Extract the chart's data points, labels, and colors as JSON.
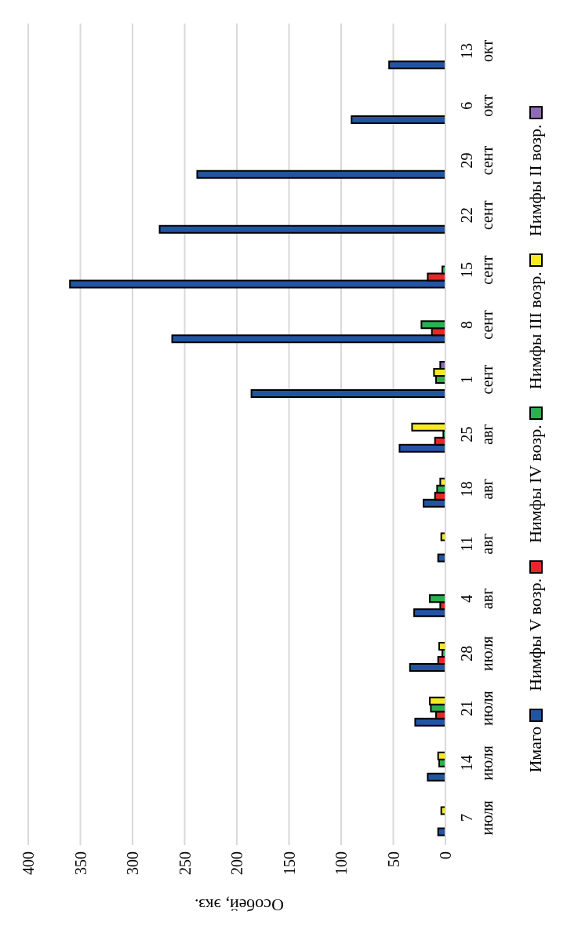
{
  "chart_data": {
    "type": "bar",
    "orientation": "horizontal",
    "xlabel": "Особей, экз.",
    "categories": [
      "13 окт",
      "6 окт",
      "29 сент",
      "22 сент",
      "15 сент",
      "8 сент",
      "1 сент",
      "25 авг",
      "18 авг",
      "11 авг",
      "4 авг",
      "28 июля",
      "21 июля",
      "14 июля",
      "7 июля"
    ],
    "series": [
      {
        "name": "Имаго",
        "color": "#2155a3",
        "values": [
          54,
          90,
          238,
          274,
          360,
          262,
          186,
          44,
          21,
          7,
          30,
          34,
          29,
          17,
          7
        ]
      },
      {
        "name": "Нимфы V возр.",
        "color": "#e8262a",
        "values": [
          null,
          null,
          null,
          null,
          17,
          13,
          null,
          10,
          10,
          null,
          5,
          7,
          9,
          null,
          null
        ]
      },
      {
        "name": "Нимфы IV возр.",
        "color": "#2bb04f",
        "values": [
          null,
          null,
          null,
          null,
          3,
          23,
          9,
          2,
          8,
          null,
          15,
          3,
          14,
          6,
          null
        ]
      },
      {
        "name": "Нимфы III возр.",
        "color": "#f5e925",
        "values": [
          null,
          null,
          null,
          null,
          null,
          null,
          11,
          32,
          5,
          4,
          null,
          6,
          15,
          7,
          4
        ]
      },
      {
        "name": "Нимфы II возр.",
        "color": "#8e6bb4",
        "values": [
          null,
          null,
          null,
          null,
          null,
          null,
          5,
          null,
          null,
          null,
          null,
          null,
          null,
          null,
          null
        ]
      }
    ],
    "xlim": [
      400,
      0
    ],
    "xticks": [
      0,
      50,
      100,
      150,
      200,
      250,
      300,
      350,
      400
    ],
    "grid": "x",
    "legend": "right"
  }
}
